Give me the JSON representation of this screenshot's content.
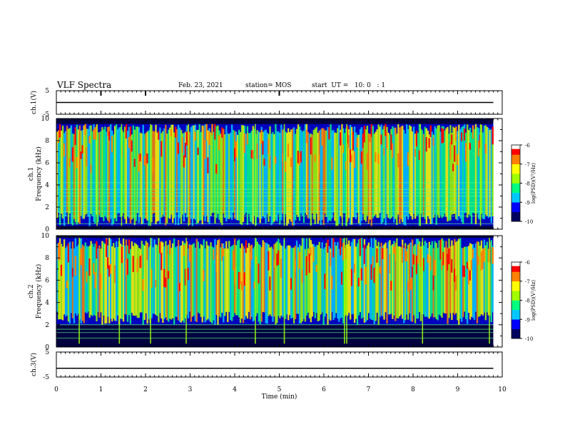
{
  "header": {
    "title": "VLF Spectra",
    "date": "Feb. 23, 2021",
    "station": "station= MOS",
    "start": "start  UT =   10: 0   : 1"
  },
  "chart_data": [
    {
      "type": "line",
      "panel": "ch1-waveform",
      "ylabel": "ch.1(V)",
      "ylim": [
        -5,
        5
      ],
      "yticks": [
        5,
        -5
      ],
      "series": [
        {
          "x": [
            0,
            9.8
          ],
          "values": [
            0,
            0
          ]
        }
      ],
      "note_marks": [
        1.0,
        2.0,
        5.0
      ]
    },
    {
      "type": "heatmap",
      "panel": "ch1-spectrogram",
      "ylabel": "ch.1",
      "ylabel2": "Frequency (kHz)",
      "ylim": [
        0,
        10
      ],
      "yticks": [
        0,
        2,
        4,
        6,
        8,
        10
      ],
      "xlim": [
        0,
        9.8
      ],
      "data_fmax": 9.5,
      "hlines": [
        0.5,
        1.2,
        1.6,
        2.1,
        2.4,
        3.0,
        3.3,
        3.6,
        4.2
      ],
      "colorbar": {
        "label": "log(PSD)(V²/Hz)",
        "range": [
          -10,
          -6
        ],
        "ticks": [
          "-6",
          "-7",
          "-8",
          "-9",
          "-10"
        ]
      }
    },
    {
      "type": "heatmap",
      "panel": "ch2-spectrogram",
      "ylabel": "ch.2",
      "ylabel2": "Frequency (kHz)",
      "ylim": [
        0,
        10
      ],
      "yticks": [
        0,
        2,
        4,
        6,
        8,
        10
      ],
      "xlim": [
        0,
        9.8
      ],
      "data_fmax": 9.8,
      "data_fmin": 2.0,
      "hlines": [
        0.8,
        1.3,
        1.6,
        2.0
      ],
      "colorbar": {
        "label": "log(PSD)(V²/Hz)",
        "range": [
          -10,
          -6
        ],
        "ticks": [
          "-6",
          "-7",
          "-8",
          "-9",
          "-10"
        ]
      }
    },
    {
      "type": "line",
      "panel": "ch3-waveform",
      "ylabel": "ch.3(V)",
      "ylim": [
        -5,
        5
      ],
      "yticks": [
        5,
        -5
      ],
      "series": [
        {
          "x": [
            0,
            9.8
          ],
          "values": [
            -1.5,
            -1.5
          ]
        }
      ]
    }
  ],
  "xaxis": {
    "label": "Time  (min)",
    "range": [
      0,
      10
    ],
    "ticks": [
      "0",
      "1",
      "2",
      "3",
      "4",
      "5",
      "6",
      "7",
      "8",
      "9",
      "10"
    ]
  },
  "colors": {
    "colormap": [
      "#000060",
      "#0000ff",
      "#00c8ff",
      "#00ff80",
      "#a0ff00",
      "#ffff00",
      "#ff8000",
      "#ff0000",
      "#ffffff"
    ]
  }
}
